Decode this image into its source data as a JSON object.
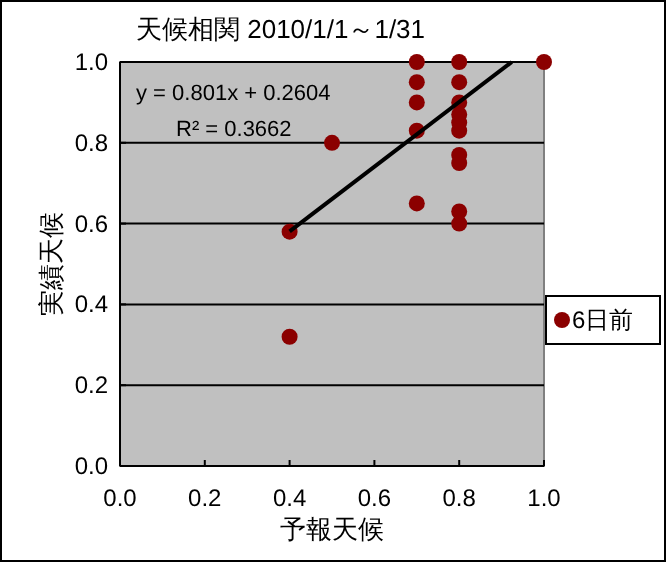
{
  "chart_data": {
    "type": "scatter",
    "title": "天候相関 2010/1/1～1/31",
    "xlabel": "予報天候",
    "ylabel": "実績天候",
    "xlim": [
      0,
      1
    ],
    "ylim": [
      0,
      1
    ],
    "xticks": [
      {
        "value": 0,
        "label": "0.0"
      },
      {
        "value": 0.2,
        "label": "0.2"
      },
      {
        "value": 0.4,
        "label": "0.4"
      },
      {
        "value": 0.6,
        "label": "0.6"
      },
      {
        "value": 0.8,
        "label": "0.8"
      },
      {
        "value": 1,
        "label": "1.0"
      }
    ],
    "yticks": [
      {
        "value": 0,
        "label": "0.0"
      },
      {
        "value": 0.2,
        "label": "0.2"
      },
      {
        "value": 0.4,
        "label": "0.4"
      },
      {
        "value": 0.6,
        "label": "0.6"
      },
      {
        "value": 0.8,
        "label": "0.8"
      },
      {
        "value": 1,
        "label": "1.0"
      }
    ],
    "grid": "y",
    "legend": "right",
    "marker": "circle",
    "series": [
      {
        "name": "6日前",
        "color": "#8b0000",
        "x": [
          0.4,
          0.4,
          0.5,
          0.7,
          0.7,
          0.7,
          0.7,
          0.7,
          0.8,
          0.8,
          0.8,
          0.8,
          0.8,
          0.8,
          0.8,
          0.8,
          0.8,
          0.8,
          1.0
        ],
        "values": [
          0.58,
          0.32,
          0.8,
          1.0,
          0.95,
          0.9,
          0.83,
          0.65,
          1.0,
          0.95,
          0.9,
          0.87,
          0.85,
          0.83,
          0.77,
          0.75,
          0.63,
          0.6,
          1.0
        ]
      },
      {
        "type": "line",
        "color": "#000000",
        "x": [
          0.4,
          0.924
        ],
        "values": [
          0.5808,
          1.0
        ],
        "marker": "none"
      }
    ],
    "annotations": [
      "y = 0.801x + 0.2604",
      "R² = 0.3662"
    ]
  }
}
